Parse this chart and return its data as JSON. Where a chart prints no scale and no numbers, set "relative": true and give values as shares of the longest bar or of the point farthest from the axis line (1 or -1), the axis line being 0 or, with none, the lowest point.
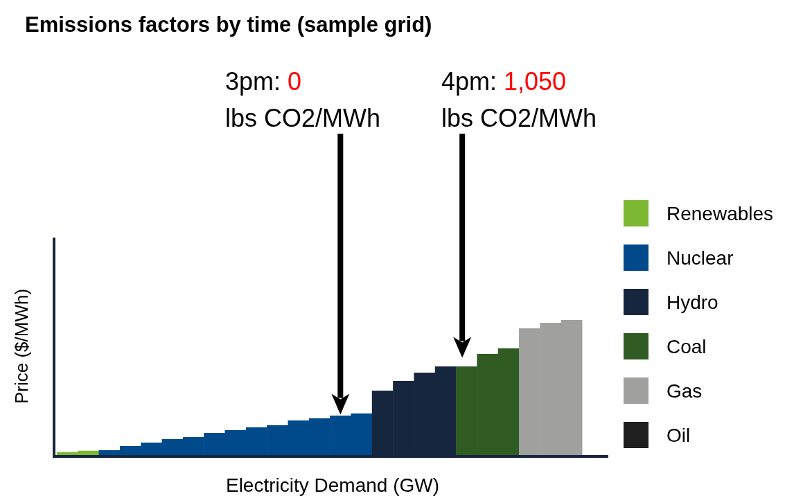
{
  "chart_data": {
    "type": "bar",
    "title": "Emissions factors by time (sample grid)",
    "xlabel": "Electricity Demand (GW)",
    "ylabel": "Price ($/MWh)",
    "relative": true,
    "stacked": true,
    "legend": "right",
    "grid": false,
    "categories": [
      null,
      null,
      null,
      null,
      null,
      null,
      null,
      null,
      null,
      null,
      null,
      null,
      null,
      null,
      null,
      null,
      null,
      null,
      null,
      null,
      null,
      null,
      null,
      null,
      null
    ],
    "annotations": [
      "3pm: 0 lbs CO2/MWh",
      "4pm: 1,050 lbs CO2/MWh"
    ],
    "series": [
      {
        "name": "Renewables",
        "color": "#7cb832",
        "values": [
          0.022,
          0.032,
          null,
          null,
          null,
          null,
          null,
          null,
          null,
          null,
          null,
          null,
          null,
          null,
          null,
          null,
          null,
          null,
          null,
          null,
          null,
          null,
          null,
          null,
          null
        ]
      },
      {
        "name": "Nuclear",
        "color": "#00498a",
        "values": [
          null,
          null,
          0.036,
          0.067,
          0.092,
          0.118,
          0.133,
          0.164,
          0.185,
          0.205,
          0.221,
          0.256,
          0.272,
          0.292,
          0.308,
          null,
          null,
          null,
          null,
          null,
          null,
          null,
          null,
          null,
          null
        ]
      },
      {
        "name": "Hydro",
        "color": "#17263f",
        "values": [
          null,
          null,
          null,
          null,
          null,
          null,
          null,
          null,
          null,
          null,
          null,
          null,
          null,
          null,
          null,
          0.477,
          0.549,
          0.61,
          0.656,
          null,
          null,
          null,
          null,
          null,
          null
        ]
      },
      {
        "name": "Coal",
        "color": "#305c23",
        "values": [
          null,
          null,
          null,
          null,
          null,
          null,
          null,
          null,
          null,
          null,
          null,
          null,
          null,
          null,
          null,
          null,
          null,
          null,
          null,
          0.656,
          0.749,
          0.79,
          null,
          null,
          null
        ]
      },
      {
        "name": "Gas",
        "color": "#a0a09e",
        "values": [
          null,
          null,
          null,
          null,
          null,
          null,
          null,
          null,
          null,
          null,
          null,
          null,
          null,
          null,
          null,
          null,
          null,
          null,
          null,
          null,
          null,
          null,
          0.938,
          0.979,
          1
        ]
      },
      {
        "name": "Oil",
        "color": "#1f1f1f",
        "values": [
          null,
          null,
          null,
          null,
          null,
          null,
          null,
          null,
          null,
          null,
          null,
          null,
          null,
          null,
          null,
          null,
          null,
          null,
          null,
          null,
          null,
          null,
          null,
          null,
          null
        ]
      }
    ]
  }
}
